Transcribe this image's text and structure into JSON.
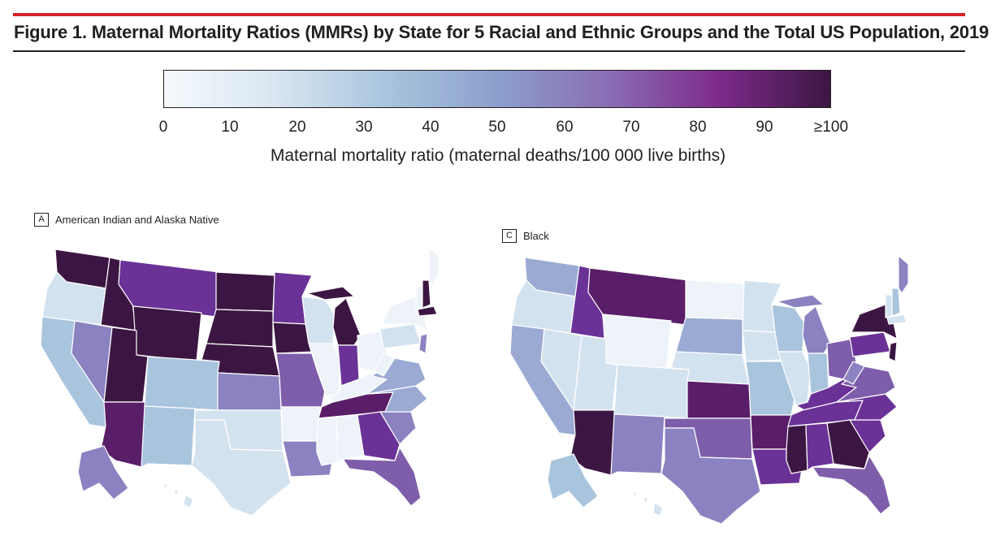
{
  "figure": {
    "title": "Figure 1. Maternal Mortality Ratios (MMRs) by State for 5 Racial and Ethnic Groups and the Total US Population, 2019"
  },
  "colors": {
    "accent_bar": "#d3222a",
    "scale_stops": [
      "#f5f9fc",
      "#d9e6f1",
      "#a9c5de",
      "#8c9fcc",
      "#8a6db4",
      "#7d2b8b",
      "#3c1642"
    ],
    "map_fills": {
      "very_light": "#eef3f9",
      "light": "#d3e2ef",
      "light_blue": "#a9c4dd",
      "blue": "#9aaad3",
      "lavender": "#8b82c1",
      "purple": "#7e5eaa",
      "deep_purple": "#6a3296",
      "plum": "#5a1e68",
      "darkest": "#3c1642"
    }
  },
  "legend": {
    "ticks": [
      "0",
      "10",
      "20",
      "30",
      "40",
      "50",
      "60",
      "70",
      "80",
      "90",
      "≥100"
    ],
    "title": "Maternal mortality ratio (maternal deaths/100 000 live births)"
  },
  "panels": [
    {
      "letter": "A",
      "label": "American Indian and Alaska Native",
      "regions": [
        {
          "name": "WA",
          "fill": "darkest"
        },
        {
          "name": "OR",
          "fill": "light"
        },
        {
          "name": "CA",
          "fill": "light_blue"
        },
        {
          "name": "NV",
          "fill": "lavender"
        },
        {
          "name": "ID",
          "fill": "darkest"
        },
        {
          "name": "MT",
          "fill": "deep_purple"
        },
        {
          "name": "WY",
          "fill": "darkest"
        },
        {
          "name": "UT",
          "fill": "darkest"
        },
        {
          "name": "AZ",
          "fill": "plum"
        },
        {
          "name": "CO",
          "fill": "light_blue"
        },
        {
          "name": "NM",
          "fill": "light_blue"
        },
        {
          "name": "ND",
          "fill": "darkest"
        },
        {
          "name": "SD",
          "fill": "darkest"
        },
        {
          "name": "NE",
          "fill": "darkest"
        },
        {
          "name": "KS",
          "fill": "lavender"
        },
        {
          "name": "OK",
          "fill": "light"
        },
        {
          "name": "TX",
          "fill": "light"
        },
        {
          "name": "MN",
          "fill": "deep_purple"
        },
        {
          "name": "IA",
          "fill": "darkest"
        },
        {
          "name": "MO",
          "fill": "purple"
        },
        {
          "name": "AR",
          "fill": "very_light"
        },
        {
          "name": "LA",
          "fill": "lavender"
        },
        {
          "name": "WI",
          "fill": "light"
        },
        {
          "name": "IL",
          "fill": "very_light"
        },
        {
          "name": "MI",
          "fill": "darkest"
        },
        {
          "name": "IN",
          "fill": "deep_purple"
        },
        {
          "name": "OH",
          "fill": "very_light"
        },
        {
          "name": "KY",
          "fill": "very_light"
        },
        {
          "name": "TN",
          "fill": "plum"
        },
        {
          "name": "MS",
          "fill": "very_light"
        },
        {
          "name": "AL",
          "fill": "very_light"
        },
        {
          "name": "GA",
          "fill": "deep_purple"
        },
        {
          "name": "FL",
          "fill": "purple"
        },
        {
          "name": "SC",
          "fill": "lavender"
        },
        {
          "name": "NC",
          "fill": "blue"
        },
        {
          "name": "VA",
          "fill": "blue"
        },
        {
          "name": "WV",
          "fill": "very_light"
        },
        {
          "name": "PA",
          "fill": "light"
        },
        {
          "name": "NY",
          "fill": "very_light"
        },
        {
          "name": "VT",
          "fill": "very_light"
        },
        {
          "name": "NH",
          "fill": "darkest"
        },
        {
          "name": "ME",
          "fill": "very_light"
        },
        {
          "name": "MA",
          "fill": "darkest"
        },
        {
          "name": "NJ",
          "fill": "lavender"
        },
        {
          "name": "AK",
          "fill": "lavender"
        },
        {
          "name": "HI",
          "fill": "light"
        }
      ]
    },
    {
      "letter": "C",
      "label": "Black",
      "regions": [
        {
          "name": "WA",
          "fill": "blue"
        },
        {
          "name": "OR",
          "fill": "light"
        },
        {
          "name": "CA",
          "fill": "blue"
        },
        {
          "name": "NV",
          "fill": "light"
        },
        {
          "name": "ID",
          "fill": "deep_purple"
        },
        {
          "name": "MT",
          "fill": "plum"
        },
        {
          "name": "WY",
          "fill": "very_light"
        },
        {
          "name": "UT",
          "fill": "light"
        },
        {
          "name": "AZ",
          "fill": "darkest"
        },
        {
          "name": "CO",
          "fill": "light"
        },
        {
          "name": "NM",
          "fill": "lavender"
        },
        {
          "name": "ND",
          "fill": "very_light"
        },
        {
          "name": "SD",
          "fill": "blue"
        },
        {
          "name": "NE",
          "fill": "light"
        },
        {
          "name": "KS",
          "fill": "plum"
        },
        {
          "name": "OK",
          "fill": "purple"
        },
        {
          "name": "TX",
          "fill": "lavender"
        },
        {
          "name": "MN",
          "fill": "light"
        },
        {
          "name": "IA",
          "fill": "light"
        },
        {
          "name": "MO",
          "fill": "light_blue"
        },
        {
          "name": "AR",
          "fill": "plum"
        },
        {
          "name": "LA",
          "fill": "deep_purple"
        },
        {
          "name": "WI",
          "fill": "light_blue"
        },
        {
          "name": "IL",
          "fill": "light"
        },
        {
          "name": "MI",
          "fill": "lavender"
        },
        {
          "name": "IN",
          "fill": "light_blue"
        },
        {
          "name": "OH",
          "fill": "purple"
        },
        {
          "name": "KY",
          "fill": "deep_purple"
        },
        {
          "name": "TN",
          "fill": "deep_purple"
        },
        {
          "name": "MS",
          "fill": "darkest"
        },
        {
          "name": "AL",
          "fill": "deep_purple"
        },
        {
          "name": "GA",
          "fill": "darkest"
        },
        {
          "name": "FL",
          "fill": "purple"
        },
        {
          "name": "SC",
          "fill": "deep_purple"
        },
        {
          "name": "NC",
          "fill": "deep_purple"
        },
        {
          "name": "VA",
          "fill": "purple"
        },
        {
          "name": "WV",
          "fill": "lavender"
        },
        {
          "name": "PA",
          "fill": "deep_purple"
        },
        {
          "name": "NY",
          "fill": "darkest"
        },
        {
          "name": "VT",
          "fill": "light"
        },
        {
          "name": "NH",
          "fill": "light_blue"
        },
        {
          "name": "ME",
          "fill": "lavender"
        },
        {
          "name": "MA",
          "fill": "light"
        },
        {
          "name": "NJ",
          "fill": "darkest"
        },
        {
          "name": "AK",
          "fill": "light_blue"
        },
        {
          "name": "HI",
          "fill": "light"
        }
      ]
    }
  ]
}
